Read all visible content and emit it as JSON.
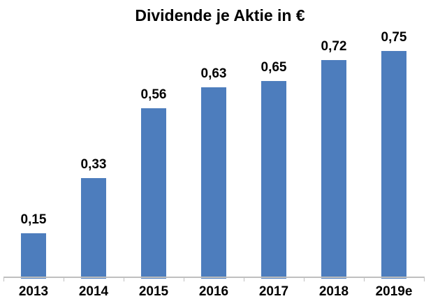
{
  "chart_data": {
    "type": "bar",
    "title": "Dividende je Aktie in €",
    "categories": [
      "2013",
      "2014",
      "2015",
      "2016",
      "2017",
      "2018",
      "2019e"
    ],
    "values": [
      0.15,
      0.33,
      0.56,
      0.63,
      0.65,
      0.72,
      0.75
    ],
    "value_labels": [
      "0,15",
      "0,33",
      "0,56",
      "0,63",
      "0,65",
      "0,72",
      "0,75"
    ],
    "xlabel": "",
    "ylabel": "",
    "ylim": [
      0,
      0.8
    ],
    "grid": false,
    "legend": false,
    "bar_color": "#4D7DBD",
    "axis_color": "#BFBFBF",
    "label_color": "#000000",
    "background_color": "#FFFFFF"
  }
}
